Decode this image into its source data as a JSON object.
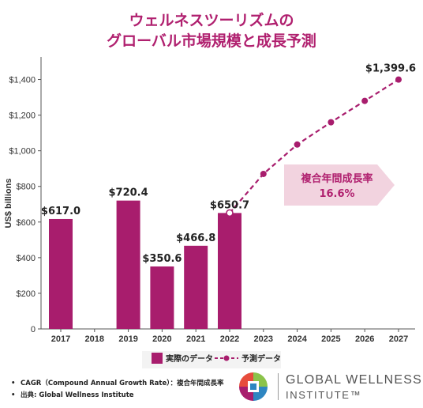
{
  "title_line1": "ウェルネスツーリズムの",
  "title_line2": "グローバル市場規模と成長予測",
  "chart_data": {
    "type": "bar+line",
    "ylabel": "US$ billions",
    "ylim": [
      0,
      1500
    ],
    "yticks": [
      0,
      200,
      400,
      600,
      800,
      1000,
      1200,
      1400
    ],
    "ytick_labels": [
      "0",
      "$200",
      "$400",
      "$600",
      "$800",
      "$1,000",
      "$1,200",
      "$1,400"
    ],
    "categories": [
      "2017",
      "2018",
      "2019",
      "2020",
      "2021",
      "2022",
      "2023",
      "2024",
      "2025",
      "2026",
      "2027"
    ],
    "series": [
      {
        "name": "実際のデータ",
        "kind": "bar",
        "color": "#a81d6d",
        "values": [
          617.0,
          null,
          720.4,
          350.6,
          466.8,
          650.7,
          null,
          null,
          null,
          null,
          null
        ],
        "labels": [
          "$617.0",
          "",
          "$720.4",
          "$350.6",
          "$466.8",
          "$650.7",
          "",
          "",
          "",
          "",
          ""
        ]
      },
      {
        "name": "予測データ",
        "kind": "line",
        "color": "#a81d6d",
        "values": [
          null,
          null,
          null,
          null,
          null,
          650.7,
          870,
          1035,
          1160,
          1280,
          1399.6
        ],
        "labels": [
          "",
          "",
          "",
          "",
          "",
          "",
          "",
          "",
          "",
          "",
          "$1,399.6"
        ]
      }
    ],
    "annotation": {
      "line1": "複合年間成長率",
      "line2": "16.6%",
      "color": "#f2d3df"
    },
    "grid": false,
    "legend": "bottom-center"
  },
  "footnotes": [
    "CAGR（Compound Annual Growth Rate）：複合年間成長率",
    "出典: Global Wellness Institute"
  ],
  "logo": {
    "line1": "GLOBAL WELLNESS",
    "line2": "INSTITUTE™"
  }
}
